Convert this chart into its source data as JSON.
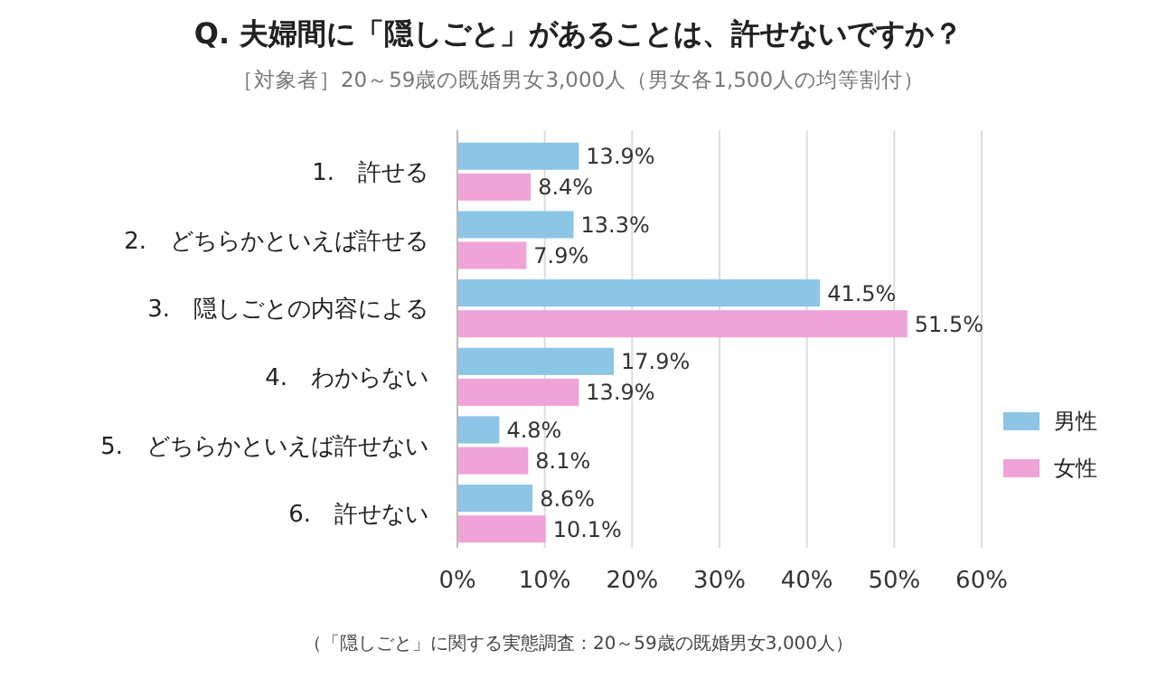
{
  "chart_data": {
    "type": "bar",
    "orientation": "horizontal",
    "title": "Q. 夫婦間に「隠しごと」があることは、許せないですか？",
    "subtitle": "［対象者］20～59歳の既婚男女3,000人（男女各1,500人の均等割付）",
    "annotations": [
      "（「隠しごと」に関する実態調査：20～59歳の既婚男女3,000人）"
    ],
    "categories": [
      "1.　許せる",
      "2.　どちらかといえば許せる",
      "3.　隠しごとの内容による",
      "4.　わからない",
      "5.　どちらかといえば許せない",
      "6.　許せない"
    ],
    "series": [
      {
        "name": "男性",
        "color": "#8cc5e6",
        "values": [
          13.9,
          13.3,
          41.5,
          17.9,
          4.8,
          8.6
        ],
        "value_labels": [
          "13.9%",
          "13.3%",
          "41.5%",
          "17.9%",
          "4.8%",
          "8.6%"
        ]
      },
      {
        "name": "女性",
        "color": "#f0a3d6",
        "values": [
          8.4,
          7.9,
          51.5,
          13.9,
          8.1,
          10.1
        ],
        "value_labels": [
          "8.4%",
          "7.9%",
          "51.5%",
          "13.9%",
          "8.1%",
          "10.1%"
        ]
      }
    ],
    "xlim": [
      0,
      60
    ],
    "xticks": [
      {
        "value": 0,
        "label": "0%"
      },
      {
        "value": 10,
        "label": "10%"
      },
      {
        "value": 20,
        "label": "20%"
      },
      {
        "value": 30,
        "label": "30%"
      },
      {
        "value": 40,
        "label": "40%"
      },
      {
        "value": 50,
        "label": "50%"
      },
      {
        "value": 60,
        "label": "60%"
      }
    ],
    "grid": "x",
    "legend": "right"
  }
}
